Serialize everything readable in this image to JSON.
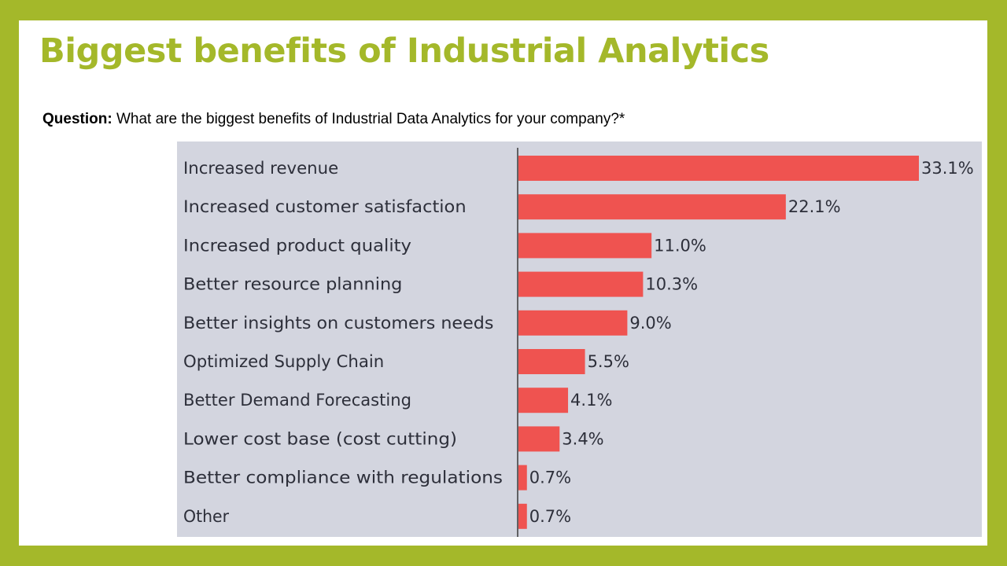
{
  "slide": {
    "title": "Biggest benefits of Industrial Analytics",
    "question_label": "Question:",
    "question_text": " What are the biggest benefits of Industrial Data Analytics for your company?*"
  },
  "chart_data": {
    "type": "bar",
    "orientation": "horizontal",
    "categories": [
      "Increased revenue",
      "Increased customer satisfaction",
      "Increased product quality",
      "Better resource planning",
      "Better insights on customers needs",
      "Optimized Supply Chain",
      "Better Demand Forecasting",
      "Lower cost base (cost cutting)",
      "Better compliance with  regulations",
      "Other"
    ],
    "values": [
      33.1,
      22.1,
      11.0,
      10.3,
      9.0,
      5.5,
      4.1,
      3.4,
      0.7,
      0.7
    ],
    "value_labels": [
      "33.1%",
      "22.1%",
      "11.0%",
      "10.3%",
      "9.0%",
      "5.5%",
      "4.1%",
      "3.4%",
      "0.7%",
      "0.7%"
    ],
    "bar_color": "#ef5350",
    "background_color": "#d3d5df",
    "grid": false,
    "legend": "none"
  }
}
